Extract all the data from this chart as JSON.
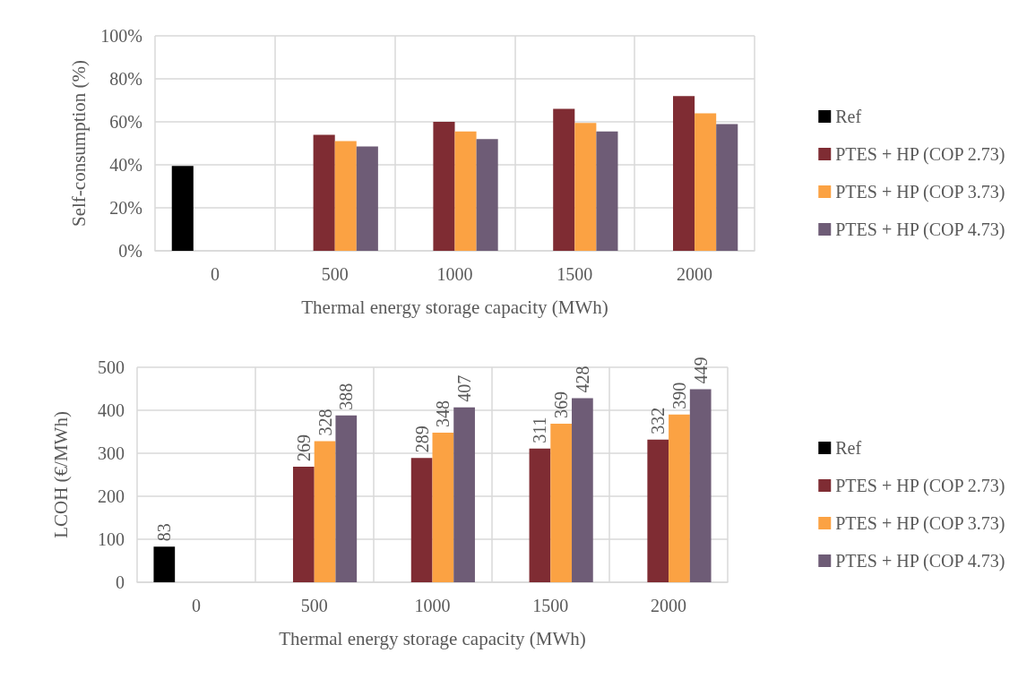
{
  "chart_data": [
    {
      "type": "bar",
      "xlabel": "Thermal energy storage capacity (MWh)",
      "ylabel": "Self-consumption (%)",
      "categories": [
        "0",
        "500",
        "1000",
        "1500",
        "2000"
      ],
      "ylim": [
        0,
        100
      ],
      "yticks": [
        {
          "value": 0,
          "label": "0%"
        },
        {
          "value": 20,
          "label": "20%"
        },
        {
          "value": 40,
          "label": "40%"
        },
        {
          "value": 60,
          "label": "60%"
        },
        {
          "value": 80,
          "label": "80%"
        },
        {
          "value": 100,
          "label": "100%"
        }
      ],
      "grid": true,
      "legend": "right",
      "series": [
        {
          "name": "Ref",
          "color": "#000000",
          "values": [
            39.5,
            null,
            null,
            null,
            null
          ]
        },
        {
          "name": "PTES + HP (COP 2.73)",
          "color": "#7f2c33",
          "values": [
            null,
            54,
            60,
            66,
            72
          ]
        },
        {
          "name": "PTES + HP (COP 3.73)",
          "color": "#fba243",
          "values": [
            null,
            51,
            55.5,
            59.5,
            64
          ]
        },
        {
          "name": "PTES + HP (COP 4.73)",
          "color": "#6e5c76",
          "values": [
            null,
            48.5,
            52,
            55.5,
            59
          ]
        }
      ]
    },
    {
      "type": "bar",
      "xlabel": "Thermal energy storage capacity (MWh)",
      "ylabel": "LCOH (€/MWh)",
      "categories": [
        "0",
        "500",
        "1000",
        "1500",
        "2000"
      ],
      "ylim": [
        0,
        500
      ],
      "yticks": [
        0,
        100,
        200,
        300,
        400,
        500
      ],
      "grid": true,
      "legend": "right",
      "data_labels": true,
      "series": [
        {
          "name": "Ref",
          "color": "#000000",
          "values": [
            83,
            null,
            null,
            null,
            null
          ]
        },
        {
          "name": "PTES + HP (COP 2.73)",
          "color": "#7f2c33",
          "values": [
            null,
            269,
            289,
            311,
            332
          ]
        },
        {
          "name": "PTES + HP (COP 3.73)",
          "color": "#fba243",
          "values": [
            null,
            328,
            348,
            369,
            390
          ]
        },
        {
          "name": "PTES + HP (COP 4.73)",
          "color": "#6e5c76",
          "values": [
            null,
            388,
            407,
            428,
            449
          ]
        }
      ]
    }
  ]
}
